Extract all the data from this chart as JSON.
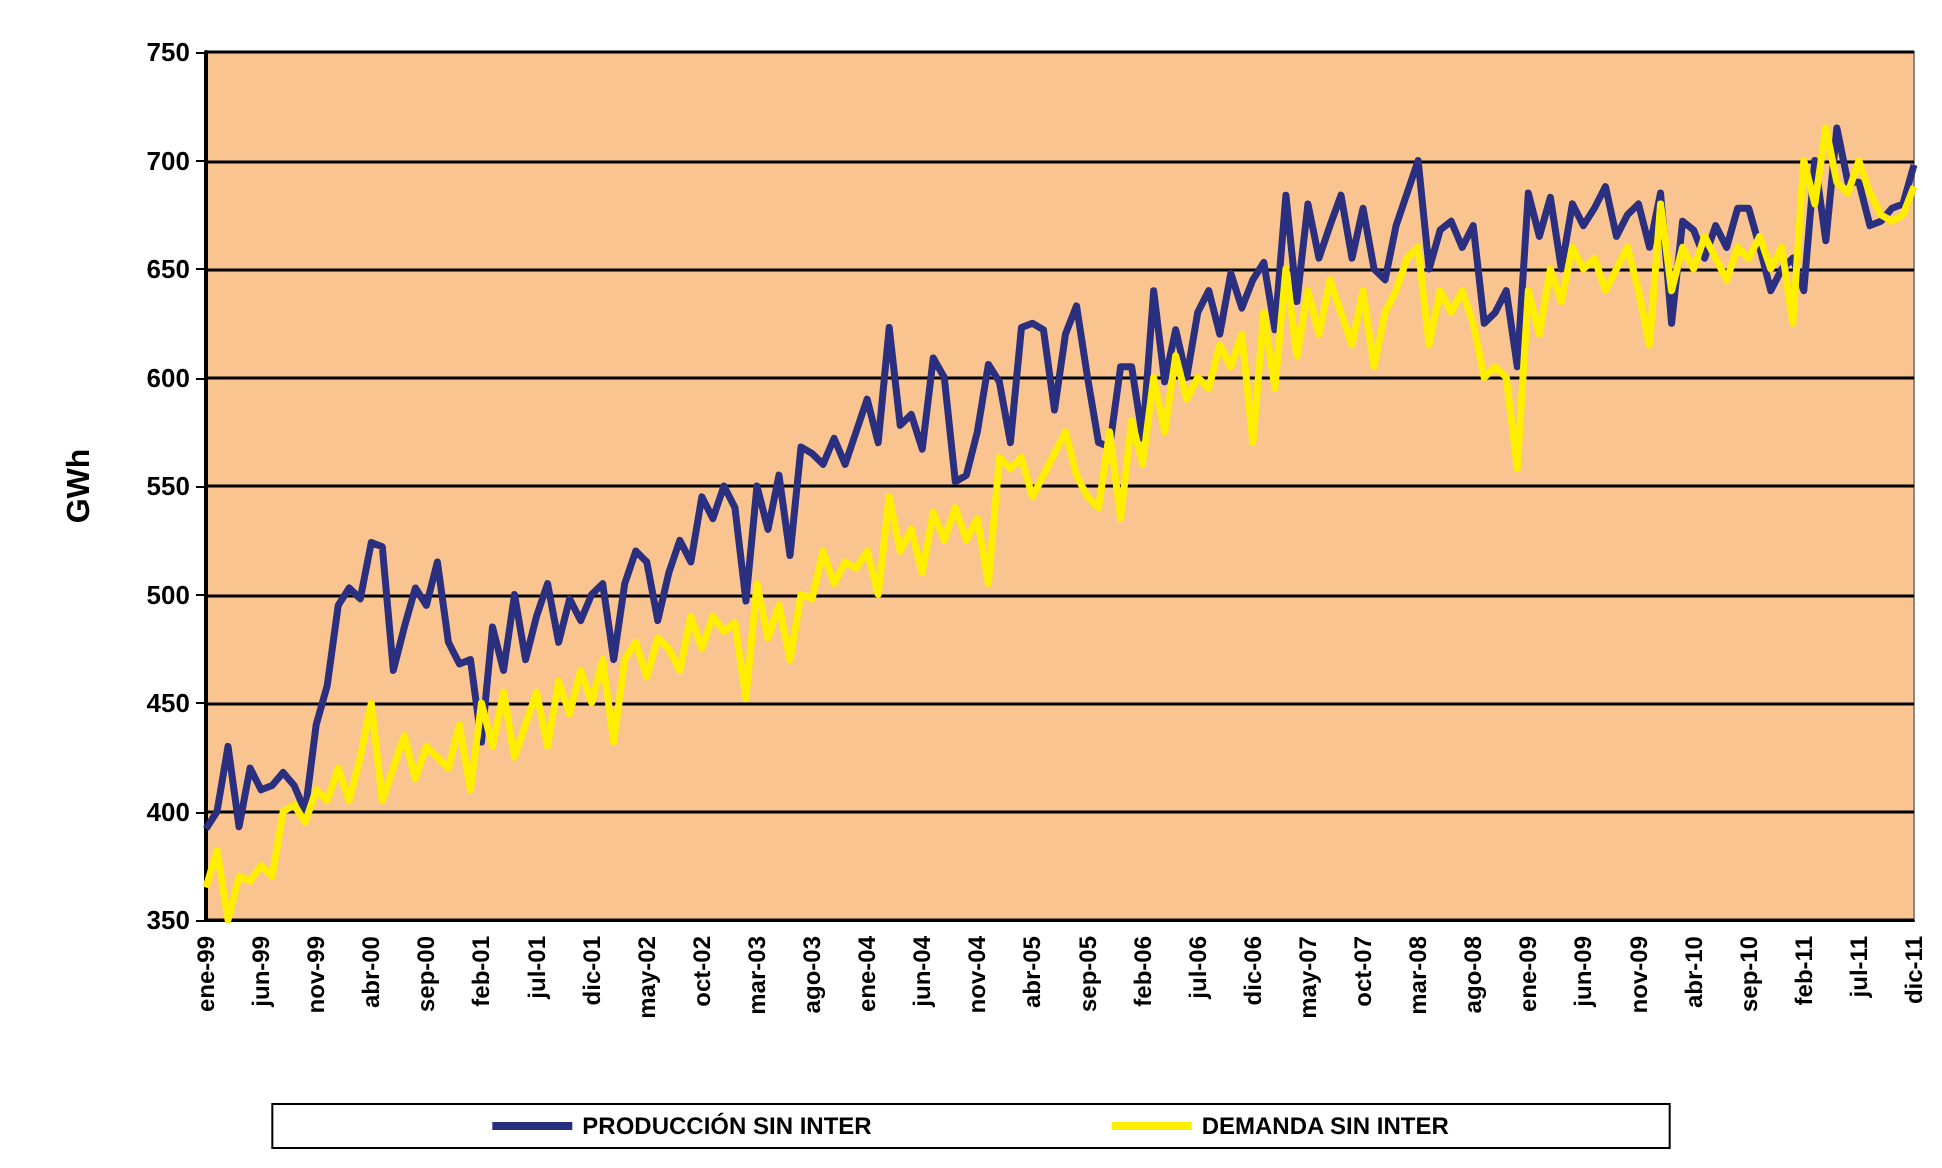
{
  "chart_data": {
    "type": "line",
    "ylabel": "GWh",
    "categories": [
      "ene-99",
      null,
      null,
      null,
      null,
      "jun-99",
      null,
      null,
      null,
      null,
      "nov-99",
      null,
      null,
      null,
      null,
      "abr-00",
      null,
      null,
      null,
      null,
      "sep-00",
      null,
      null,
      null,
      null,
      "feb-01",
      null,
      null,
      null,
      null,
      "jul-01",
      null,
      null,
      null,
      null,
      "dic-01",
      null,
      null,
      null,
      null,
      "may-02",
      null,
      null,
      null,
      null,
      "oct-02",
      null,
      null,
      null,
      null,
      "mar-03",
      null,
      null,
      null,
      null,
      "ago-03",
      null,
      null,
      null,
      null,
      "ene-04",
      null,
      null,
      null,
      null,
      "jun-04",
      null,
      null,
      null,
      null,
      "nov-04",
      null,
      null,
      null,
      null,
      "abr-05",
      null,
      null,
      null,
      null,
      "sep-05",
      null,
      null,
      null,
      null,
      "feb-06",
      null,
      null,
      null,
      null,
      "jul-06",
      null,
      null,
      null,
      null,
      "dic-06",
      null,
      null,
      null,
      null,
      "may-07",
      null,
      null,
      null,
      null,
      "oct-07",
      null,
      null,
      null,
      null,
      "mar-08",
      null,
      null,
      null,
      null,
      "ago-08",
      null,
      null,
      null,
      null,
      "ene-09",
      null,
      null,
      null,
      null,
      "jun-09",
      null,
      null,
      null,
      null,
      "nov-09",
      null,
      null,
      null,
      null,
      "abr-10",
      null,
      null,
      null,
      null,
      "sep-10",
      null,
      null,
      null,
      null,
      "feb-11",
      null,
      null,
      null,
      null,
      "jul-11",
      null,
      null,
      null,
      null,
      "dic-11"
    ],
    "series": [
      {
        "name": "PRODUCCIÓN SIN INTER",
        "color": "#2b2f7f",
        "values": [
          392,
          400,
          430,
          393,
          420,
          410,
          412,
          418,
          412,
          400,
          440,
          458,
          495,
          503,
          498,
          524,
          522,
          465,
          485,
          503,
          495,
          515,
          478,
          468,
          470,
          432,
          485,
          465,
          500,
          470,
          490,
          505,
          478,
          498,
          488,
          500,
          505,
          470,
          505,
          520,
          515,
          488,
          510,
          525,
          515,
          545,
          535,
          550,
          540,
          497,
          550,
          530,
          555,
          518,
          568,
          565,
          560,
          572,
          560,
          575,
          590,
          570,
          623,
          578,
          583,
          567,
          609,
          600,
          552,
          555,
          575,
          606,
          598,
          570,
          623,
          625,
          622,
          585,
          620,
          633,
          600,
          570,
          568,
          605,
          605,
          572,
          640,
          598,
          622,
          600,
          630,
          640,
          620,
          648,
          632,
          645,
          653,
          622,
          684,
          635,
          680,
          655,
          670,
          684,
          655,
          678,
          650,
          645,
          670,
          685,
          700,
          650,
          668,
          672,
          660,
          670,
          625,
          630,
          640,
          605,
          685,
          665,
          683,
          650,
          680,
          670,
          678,
          688,
          665,
          675,
          680,
          660,
          685,
          625,
          672,
          668,
          655,
          670,
          660,
          678,
          678,
          660,
          640,
          650,
          655,
          640,
          700,
          663,
          715,
          690,
          690,
          670,
          672,
          678,
          680,
          698
        ]
      },
      {
        "name": "DEMANDA SIN INTER",
        "color": "#ffee00",
        "values": [
          365,
          382,
          350,
          370,
          368,
          375,
          370,
          400,
          403,
          395,
          410,
          405,
          420,
          405,
          425,
          450,
          405,
          420,
          435,
          415,
          430,
          425,
          420,
          440,
          410,
          450,
          430,
          455,
          425,
          440,
          455,
          430,
          460,
          445,
          465,
          450,
          470,
          432,
          470,
          478,
          462,
          480,
          475,
          465,
          490,
          475,
          490,
          483,
          487,
          452,
          505,
          480,
          495,
          470,
          500,
          498,
          520,
          505,
          515,
          512,
          520,
          500,
          545,
          520,
          530,
          510,
          538,
          525,
          540,
          525,
          535,
          505,
          563,
          558,
          563,
          545,
          555,
          565,
          575,
          555,
          545,
          540,
          575,
          535,
          580,
          560,
          600,
          575,
          610,
          590,
          600,
          595,
          615,
          605,
          620,
          570,
          630,
          595,
          650,
          610,
          640,
          620,
          645,
          630,
          615,
          640,
          605,
          630,
          640,
          655,
          660,
          615,
          640,
          630,
          640,
          625,
          600,
          605,
          600,
          558,
          640,
          620,
          650,
          635,
          660,
          650,
          655,
          640,
          650,
          660,
          640,
          615,
          680,
          640,
          660,
          650,
          665,
          655,
          645,
          660,
          655,
          665,
          650,
          660,
          625,
          700,
          680,
          715,
          690,
          685,
          700,
          685,
          675,
          672,
          675,
          688
        ]
      }
    ],
    "ylim": [
      350,
      750
    ],
    "yticks": [
      350,
      400,
      450,
      500,
      550,
      600,
      650,
      700,
      750
    ],
    "grid": "y",
    "legend": "bottom",
    "marker": "none"
  }
}
